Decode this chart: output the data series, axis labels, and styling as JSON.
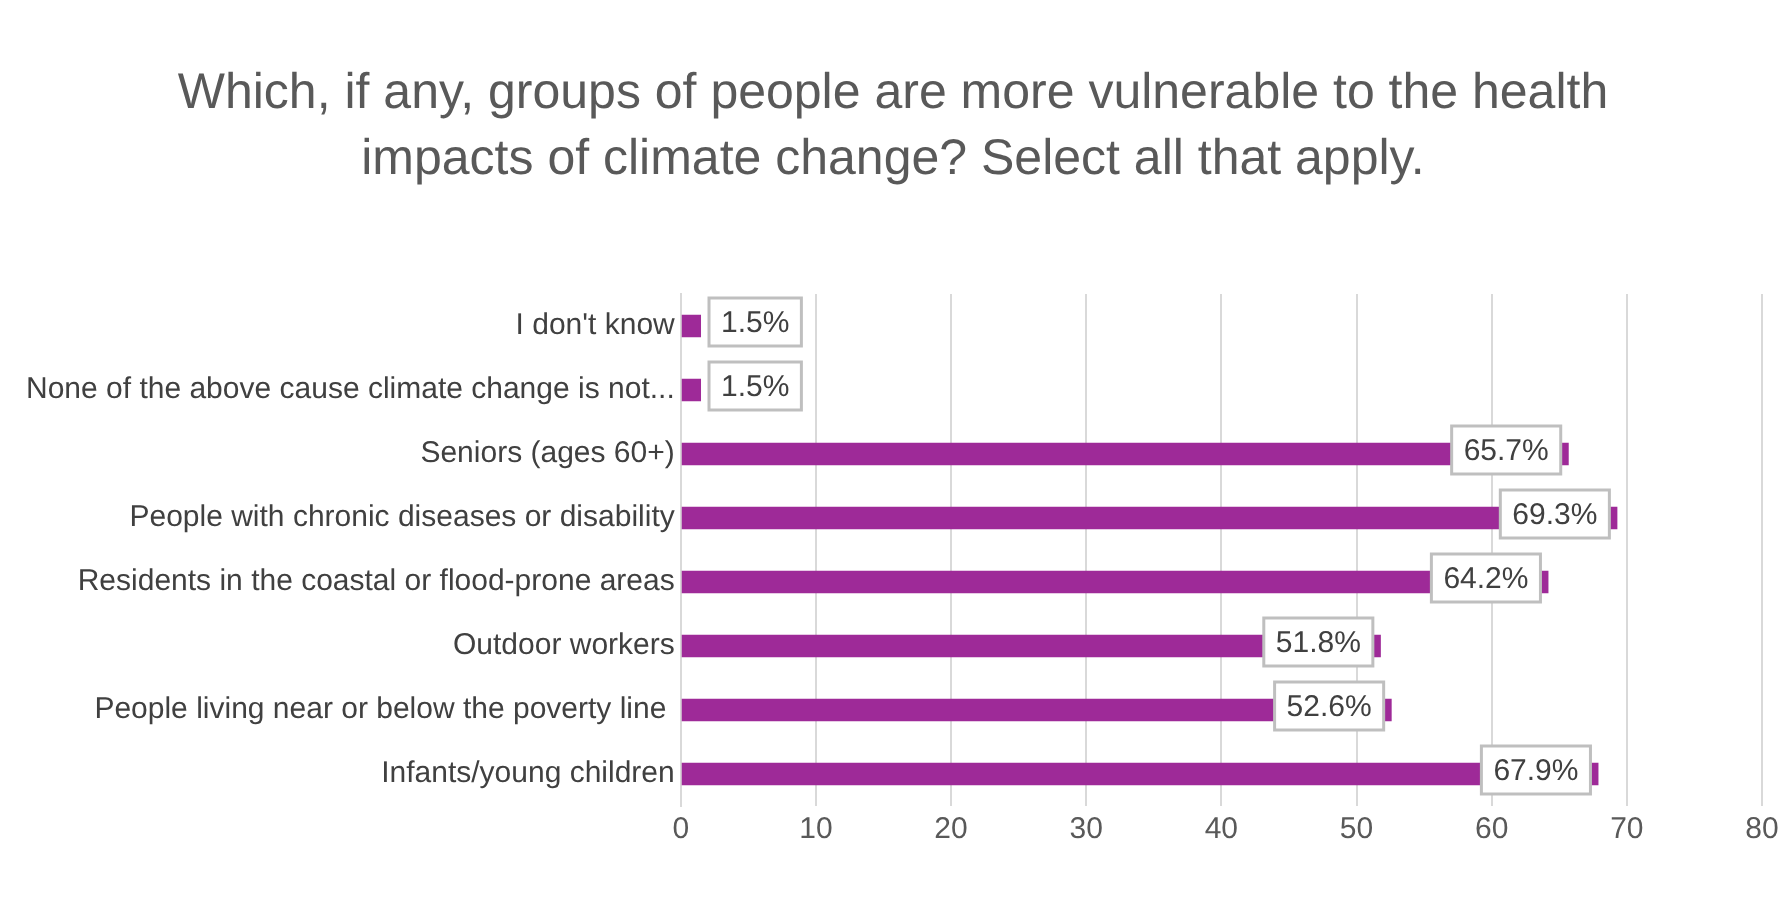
{
  "chart_data": {
    "type": "bar",
    "orientation": "horizontal",
    "title": "Which, if any, groups of people are more vulnerable to the health impacts of climate change? Select all that apply.",
    "categories": [
      "I don't know",
      "None of the above cause climate change is not...",
      "Seniors (ages 60+)",
      "People with chronic diseases or disability",
      "Residents in the coastal or flood-prone areas",
      "Outdoor workers",
      "People living near or below the poverty line ",
      "Infants/young children"
    ],
    "values": [
      1.5,
      1.5,
      65.7,
      69.3,
      64.2,
      51.8,
      52.6,
      67.9
    ],
    "value_labels": [
      "1.5%",
      "1.5%",
      "65.7%",
      "69.3%",
      "64.2%",
      "51.8%",
      "52.6%",
      "67.9%"
    ],
    "color": "#9e2a98",
    "xlim": [
      0,
      80
    ],
    "xticks": [
      0,
      10,
      20,
      30,
      40,
      50,
      60,
      70,
      80
    ],
    "grid": "x",
    "legend": false
  }
}
